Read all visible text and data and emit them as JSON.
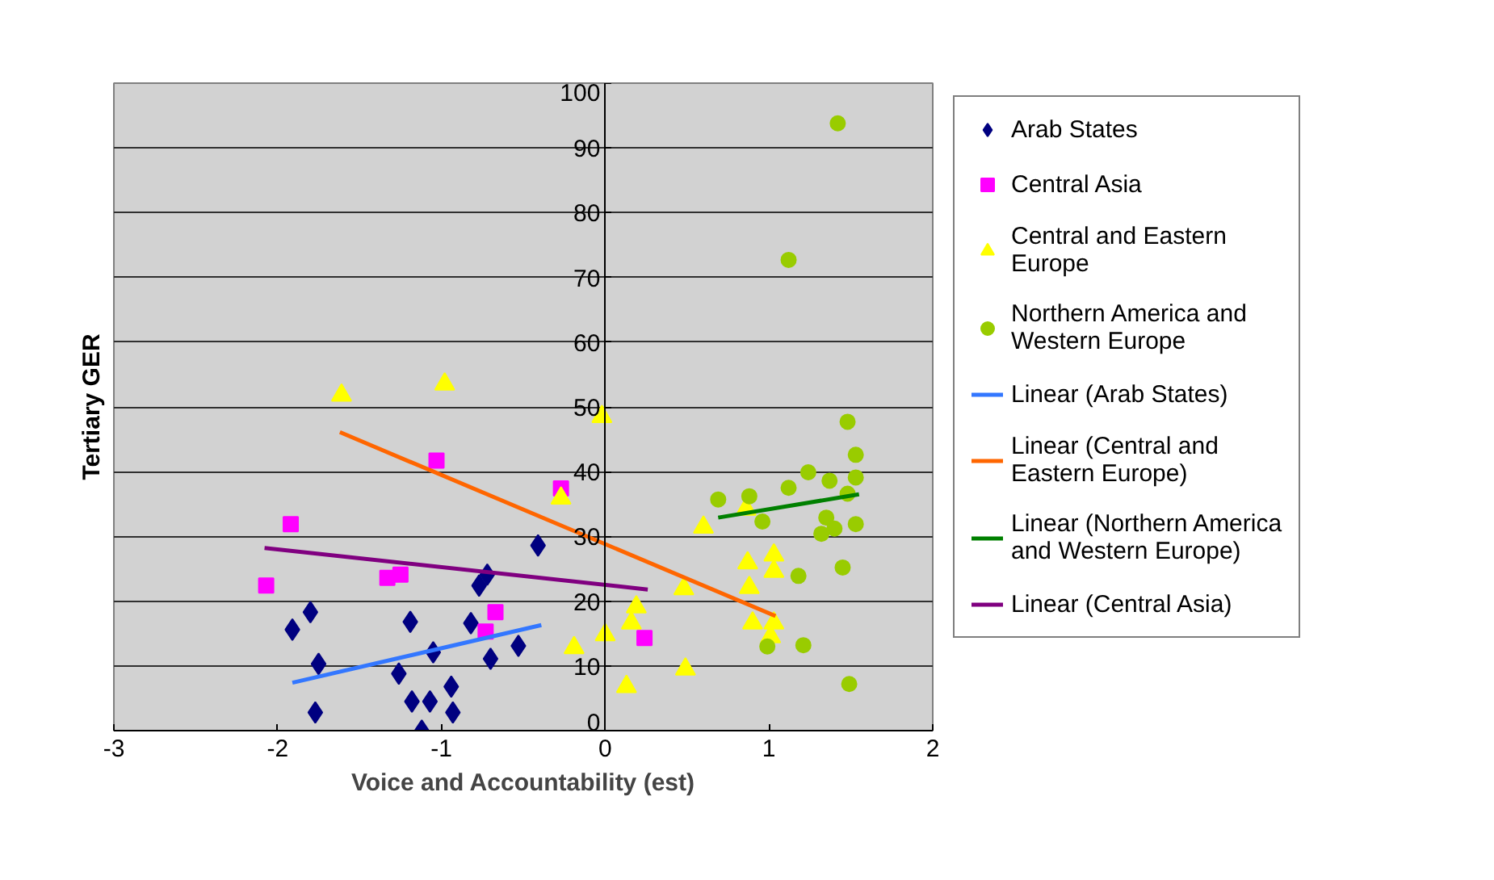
{
  "chart_data": {
    "type": "scatter",
    "xlabel": "Voice and Accountability (est)",
    "ylabel": "Tertiary GER",
    "xlim": [
      -3,
      2
    ],
    "xticks": [
      -3,
      -2,
      -1,
      0,
      1,
      2
    ],
    "ylim": [
      0,
      100
    ],
    "yticks": [
      0,
      10,
      20,
      30,
      40,
      50,
      60,
      70,
      80,
      90,
      100
    ],
    "grid": "y",
    "legend": "right",
    "series": [
      {
        "name": "Arab States",
        "marker": "diamond",
        "color": "#000080",
        "x": [
          -1.91,
          -1.8,
          -1.75,
          -1.77,
          -1.19,
          -1.26,
          -1.18,
          -1.07,
          -1.05,
          -1.12,
          -0.94,
          -0.93,
          -0.82,
          -0.77,
          -0.72,
          -0.7,
          -0.53,
          -0.41
        ],
        "values": [
          15.6,
          18.3,
          10.3,
          2.8,
          16.8,
          8.8,
          4.5,
          4.5,
          12.1,
          0,
          6.8,
          2.8,
          16.6,
          22.4,
          24.1,
          11.1,
          13.1,
          28.6
        ]
      },
      {
        "name": "Central Asia",
        "marker": "square",
        "color": "#ff00ff",
        "x": [
          -2.07,
          -1.92,
          -1.33,
          -1.25,
          -1.03,
          -0.67,
          -0.73,
          -0.27,
          0.24
        ],
        "values": [
          22.4,
          31.9,
          23.6,
          24.1,
          41.7,
          18.3,
          15.3,
          37.4,
          14.3
        ]
      },
      {
        "name": "Central and Eastern Europe",
        "marker": "triangle",
        "color": "#ffff00",
        "x": [
          -1.61,
          -0.98,
          -0.02,
          -0.27,
          -0.19,
          0.0,
          0.13,
          0.16,
          0.19,
          0.48,
          0.49,
          0.6,
          0.86,
          0.87,
          0.88,
          0.9,
          1.03,
          1.03,
          1.03,
          1.01
        ],
        "values": [
          51.8,
          53.5,
          48.5,
          35.9,
          12.8,
          14.8,
          6.8,
          16.6,
          19.1,
          21.9,
          9.5,
          31.4,
          34.2,
          25.9,
          22.1,
          16.6,
          27.1,
          24.6,
          16.6,
          14.5
        ]
      },
      {
        "name": "Northern America and Western Europe",
        "marker": "circle",
        "color": "#99cc00",
        "x": [
          1.42,
          1.12,
          0.69,
          0.88,
          0.96,
          1.12,
          1.24,
          1.37,
          1.48,
          1.53,
          1.53,
          1.48,
          1.35,
          1.32,
          1.4,
          1.53,
          1.45,
          1.18,
          0.99,
          1.21,
          1.49
        ],
        "values": [
          93.8,
          72.7,
          35.7,
          36.2,
          32.3,
          37.5,
          39.9,
          38.6,
          47.7,
          42.6,
          39.1,
          36.6,
          32.9,
          30.4,
          31.2,
          31.9,
          25.2,
          23.9,
          13.0,
          13.2,
          7.2
        ]
      },
      {
        "name": "Linear (Arab States)",
        "type": "line",
        "color": "#3377ff",
        "x": [
          -1.91,
          -0.39
        ],
        "values": [
          7.4,
          16.3
        ]
      },
      {
        "name": "Linear (Central and Eastern Europe)",
        "type": "line",
        "color": "#ff6600",
        "x": [
          -1.62,
          1.04
        ],
        "values": [
          46.1,
          17.7
        ]
      },
      {
        "name": "Linear (Northern America and Western Europe)",
        "type": "line",
        "color": "#008000",
        "x": [
          0.69,
          1.55
        ],
        "values": [
          32.9,
          36.5
        ]
      },
      {
        "name": "Linear (Central Asia)",
        "type": "line",
        "color": "#800080",
        "x": [
          -2.08,
          0.26
        ],
        "values": [
          28.2,
          21.8
        ]
      }
    ]
  }
}
